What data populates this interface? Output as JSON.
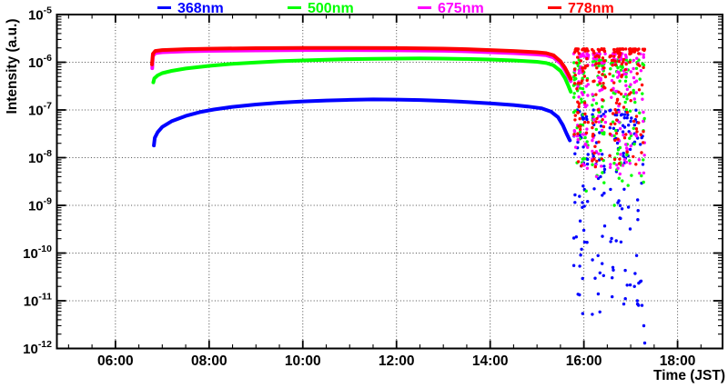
{
  "legend": {
    "entries": [
      {
        "label": "368nm",
        "color": "#0000ff"
      },
      {
        "label": "500nm",
        "color": "#00ff00"
      },
      {
        "label": "675nm",
        "color": "#ff00ff"
      },
      {
        "label": "778nm",
        "color": "#ff0000"
      }
    ]
  },
  "axes": {
    "y_title": "Intensity (a.u.)",
    "x_title": "Time (JST)",
    "x_ticks": [
      {
        "t": 6,
        "label": "06:00"
      },
      {
        "t": 8,
        "label": "08:00"
      },
      {
        "t": 10,
        "label": "10:00"
      },
      {
        "t": 12,
        "label": "12:00"
      },
      {
        "t": 14,
        "label": "14:00"
      },
      {
        "t": 16,
        "label": "16:00"
      },
      {
        "t": 18,
        "label": "18:00"
      }
    ],
    "y_tick_base": "10",
    "y_tick_exponents": [
      -5,
      -6,
      -7,
      -8,
      -9,
      -10,
      -11,
      -12
    ]
  },
  "chart_data": {
    "type": "line",
    "title": "",
    "xlabel": "Time (JST)",
    "ylabel": "Intensity (a.u.)",
    "x_range": [
      4.75,
      18.96
    ],
    "x_unit": "decimal_hours_JST",
    "y_scale": "log",
    "y_log_range": [
      -12,
      -5
    ],
    "grid": true,
    "grid_style": "dotted",
    "legend_position": "top",
    "series": [
      {
        "name": "368nm",
        "color": "#0000ff",
        "curve": [
          [
            6.82,
            1.8e-08
          ],
          [
            6.84,
            2.6e-08
          ],
          [
            6.9,
            3.4e-08
          ],
          [
            7.0,
            4.4e-08
          ],
          [
            7.2,
            5.8e-08
          ],
          [
            7.5,
            7.5e-08
          ],
          [
            7.8,
            9e-08
          ],
          [
            8.1,
            1.02e-07
          ],
          [
            8.5,
            1.16e-07
          ],
          [
            9.0,
            1.3e-07
          ],
          [
            9.5,
            1.42e-07
          ],
          [
            10.0,
            1.51e-07
          ],
          [
            10.5,
            1.58e-07
          ],
          [
            11.0,
            1.63e-07
          ],
          [
            11.5,
            1.66e-07
          ],
          [
            12.0,
            1.65e-07
          ],
          [
            12.5,
            1.61e-07
          ],
          [
            13.0,
            1.55e-07
          ],
          [
            13.5,
            1.47e-07
          ],
          [
            14.0,
            1.38e-07
          ],
          [
            14.5,
            1.27e-07
          ],
          [
            14.8,
            1.18e-07
          ],
          [
            15.1,
            1.08e-07
          ],
          [
            15.3,
            9.2e-08
          ],
          [
            15.45,
            7e-08
          ],
          [
            15.55,
            4.8e-08
          ],
          [
            15.63,
            3.2e-08
          ],
          [
            15.7,
            2.3e-08
          ]
        ],
        "noise": {
          "seed": 11,
          "bands": [
            [
              15.78,
              16.1,
              45
            ],
            [
              16.17,
              16.47,
              40
            ],
            [
              16.55,
              17.02,
              60
            ],
            [
              17.05,
              17.3,
              22
            ]
          ],
          "log_min": -11.3,
          "log_max": -7.0,
          "top_bias": 1.6
        },
        "extra_points": [
          [
            15.95,
            1.2e-10
          ],
          [
            16.0,
            3e-10
          ],
          [
            16.62,
            5e-11
          ],
          [
            17.08,
            2e-11
          ],
          [
            17.14,
            1e-11
          ],
          [
            17.2,
            2.5e-11
          ],
          [
            17.24,
            8e-12
          ],
          [
            17.28,
            3e-12
          ],
          [
            17.3,
            1.3e-12
          ]
        ]
      },
      {
        "name": "500nm",
        "color": "#00ff00",
        "curve": [
          [
            6.81,
            3.8e-07
          ],
          [
            6.83,
            4.6e-07
          ],
          [
            6.9,
            5.3e-07
          ],
          [
            7.0,
            5.9e-07
          ],
          [
            7.2,
            6.6e-07
          ],
          [
            7.5,
            7.4e-07
          ],
          [
            8.0,
            8.4e-07
          ],
          [
            8.5,
            9.3e-07
          ],
          [
            9.0,
            9.9e-07
          ],
          [
            9.5,
            1.05e-06
          ],
          [
            10.0,
            1.09e-06
          ],
          [
            10.5,
            1.13e-06
          ],
          [
            11.0,
            1.16e-06
          ],
          [
            11.5,
            1.18e-06
          ],
          [
            12.0,
            1.19e-06
          ],
          [
            12.5,
            1.2e-06
          ],
          [
            13.0,
            1.19e-06
          ],
          [
            13.5,
            1.17e-06
          ],
          [
            14.0,
            1.14e-06
          ],
          [
            14.5,
            1.09e-06
          ],
          [
            15.0,
            1.02e-06
          ],
          [
            15.2,
            9.6e-07
          ],
          [
            15.35,
            8.6e-07
          ],
          [
            15.5,
            6.6e-07
          ],
          [
            15.6,
            4.6e-07
          ],
          [
            15.67,
            3.2e-07
          ],
          [
            15.72,
            2.4e-07
          ]
        ],
        "noise": {
          "seed": 22,
          "bands": [
            [
              15.78,
              16.1,
              48
            ],
            [
              16.17,
              16.47,
              42
            ],
            [
              16.55,
              17.02,
              60
            ],
            [
              17.05,
              17.3,
              20
            ]
          ],
          "log_min": -8.6,
          "log_max": -5.95,
          "top_bias": 1.9
        },
        "extra_points": [
          [
            16.05,
            2e-09
          ],
          [
            16.65,
            1e-09
          ]
        ]
      },
      {
        "name": "675nm",
        "color": "#ff00ff",
        "curve": [
          [
            6.785,
            7.5e-07
          ],
          [
            6.8,
            1.35e-06
          ],
          [
            6.85,
            1.55e-06
          ],
          [
            7.0,
            1.62e-06
          ],
          [
            7.5,
            1.69e-06
          ],
          [
            8.0,
            1.73e-06
          ],
          [
            9.0,
            1.77e-06
          ],
          [
            10.0,
            1.8e-06
          ],
          [
            11.0,
            1.8e-06
          ],
          [
            12.0,
            1.78e-06
          ],
          [
            13.0,
            1.74e-06
          ],
          [
            13.5,
            1.69e-06
          ],
          [
            14.0,
            1.62e-06
          ],
          [
            14.5,
            1.55e-06
          ],
          [
            15.0,
            1.46e-06
          ],
          [
            15.2,
            1.4e-06
          ],
          [
            15.35,
            1.26e-06
          ],
          [
            15.5,
            9.5e-07
          ],
          [
            15.6,
            6.8e-07
          ],
          [
            15.67,
            5e-07
          ],
          [
            15.72,
            4e-07
          ]
        ],
        "noise": {
          "seed": 33,
          "bands": [
            [
              15.78,
              16.1,
              50
            ],
            [
              16.17,
              16.47,
              45
            ],
            [
              16.55,
              17.02,
              62
            ],
            [
              17.05,
              17.3,
              24
            ]
          ],
          "log_min": -8.4,
          "log_max": -5.82,
          "top_bias": 2.3
        },
        "extra_points": []
      },
      {
        "name": "778nm",
        "color": "#ff0000",
        "curve": [
          [
            6.78,
            9e-07
          ],
          [
            6.8,
            1.5e-06
          ],
          [
            6.85,
            1.72e-06
          ],
          [
            7.0,
            1.8e-06
          ],
          [
            7.5,
            1.88e-06
          ],
          [
            8.0,
            1.92e-06
          ],
          [
            9.0,
            1.97e-06
          ],
          [
            10.0,
            2e-06
          ],
          [
            11.0,
            2e-06
          ],
          [
            12.0,
            1.98e-06
          ],
          [
            13.0,
            1.93e-06
          ],
          [
            13.5,
            1.88e-06
          ],
          [
            14.0,
            1.8e-06
          ],
          [
            14.5,
            1.72e-06
          ],
          [
            15.0,
            1.62e-06
          ],
          [
            15.2,
            1.55e-06
          ],
          [
            15.35,
            1.4e-06
          ],
          [
            15.5,
            1.05e-06
          ],
          [
            15.6,
            7.6e-07
          ],
          [
            15.67,
            5.6e-07
          ],
          [
            15.72,
            4.5e-07
          ]
        ],
        "noise": {
          "seed": 44,
          "bands": [
            [
              15.78,
              16.1,
              60
            ],
            [
              16.17,
              16.47,
              55
            ],
            [
              16.55,
              17.02,
              75
            ],
            [
              17.05,
              17.3,
              30
            ]
          ],
          "log_min": -8.2,
          "log_max": -5.72,
          "top_bias": 2.6
        },
        "extra_points": []
      }
    ]
  }
}
